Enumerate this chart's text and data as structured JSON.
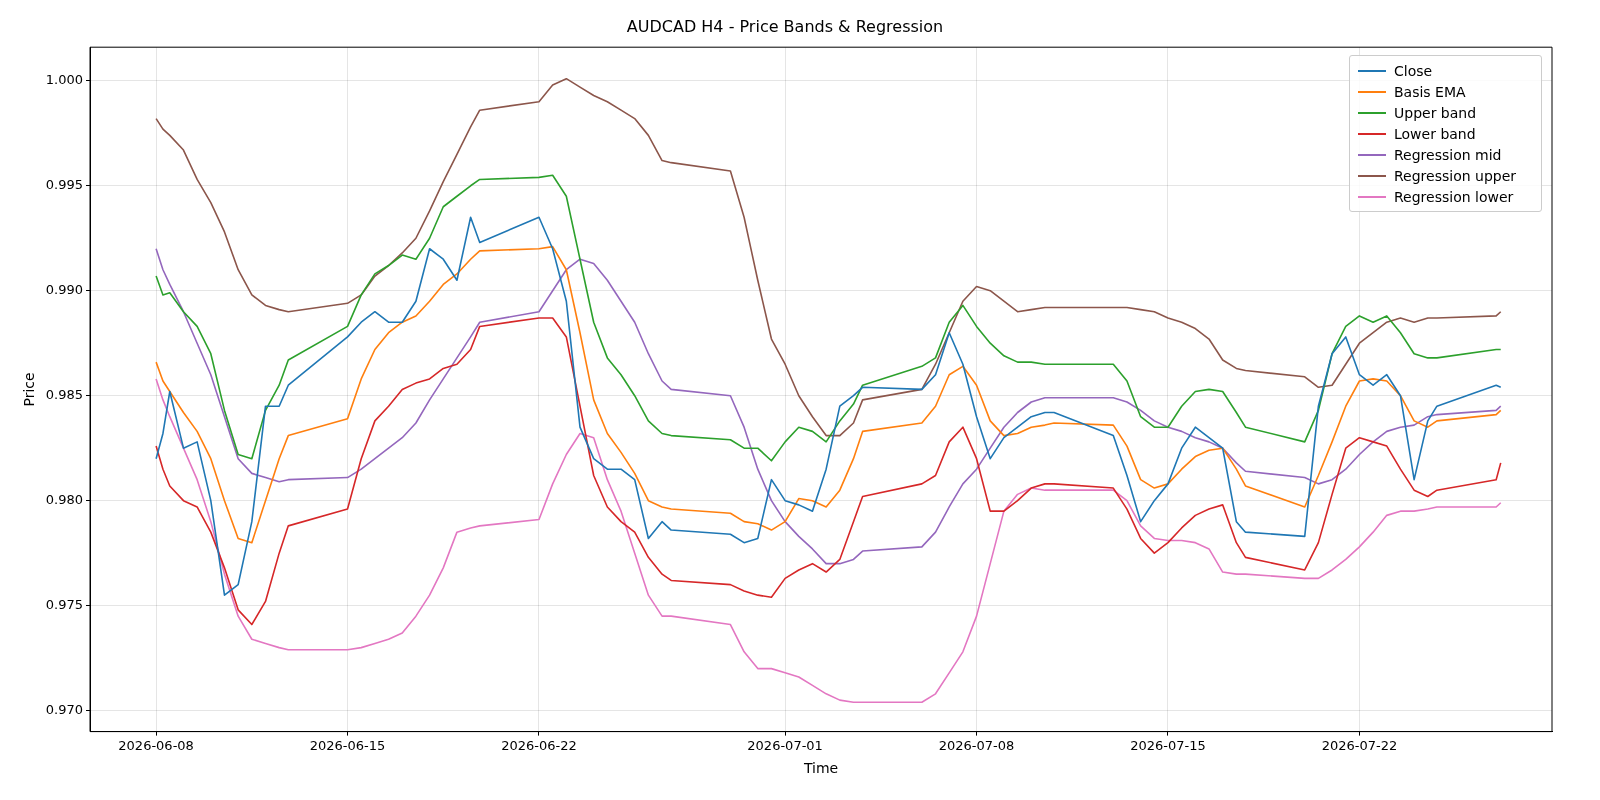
{
  "chart_data": {
    "type": "line",
    "title": "AUDCAD H4 - Price Bands & Regression",
    "xlabel": "Time",
    "ylabel": "Price",
    "x": [
      "2026-06-08T00:00",
      "2026-06-08T06:00",
      "2026-06-08T12:00",
      "2026-06-09T00:00",
      "2026-06-09T12:00",
      "2026-06-10T00:00",
      "2026-06-10T12:00",
      "2026-06-11T00:00",
      "2026-06-11T12:00",
      "2026-06-12T00:00",
      "2026-06-12T12:00",
      "2026-06-12T20:00",
      "2026-06-15T00:00",
      "2026-06-15T12:00",
      "2026-06-16T00:00",
      "2026-06-16T12:00",
      "2026-06-17T00:00",
      "2026-06-17T12:00",
      "2026-06-18T00:00",
      "2026-06-18T12:00",
      "2026-06-19T00:00",
      "2026-06-19T12:00",
      "2026-06-19T20:00",
      "2026-06-22T00:00",
      "2026-06-22T12:00",
      "2026-06-23T00:00",
      "2026-06-23T12:00",
      "2026-06-24T00:00",
      "2026-06-24T12:00",
      "2026-06-25T00:00",
      "2026-06-25T12:00",
      "2026-06-26T00:00",
      "2026-06-26T12:00",
      "2026-06-26T20:00",
      "2026-06-29T00:00",
      "2026-06-29T12:00",
      "2026-06-30T00:00",
      "2026-06-30T12:00",
      "2026-07-01T00:00",
      "2026-07-01T12:00",
      "2026-07-02T00:00",
      "2026-07-02T12:00",
      "2026-07-03T00:00",
      "2026-07-03T12:00",
      "2026-07-03T20:00",
      "2026-07-06T00:00",
      "2026-07-06T12:00",
      "2026-07-07T00:00",
      "2026-07-07T12:00",
      "2026-07-08T00:00",
      "2026-07-08T12:00",
      "2026-07-09T00:00",
      "2026-07-09T12:00",
      "2026-07-10T00:00",
      "2026-07-10T12:00",
      "2026-07-10T20:00",
      "2026-07-13T00:00",
      "2026-07-13T12:00",
      "2026-07-14T00:00",
      "2026-07-14T12:00",
      "2026-07-15T00:00",
      "2026-07-15T12:00",
      "2026-07-16T00:00",
      "2026-07-16T12:00",
      "2026-07-17T00:00",
      "2026-07-17T12:00",
      "2026-07-17T20:00",
      "2026-07-20T00:00",
      "2026-07-20T12:00",
      "2026-07-21T00:00",
      "2026-07-21T12:00",
      "2026-07-22T00:00",
      "2026-07-22T12:00",
      "2026-07-23T00:00",
      "2026-07-23T12:00",
      "2026-07-24T00:00",
      "2026-07-24T12:00",
      "2026-07-24T20:00",
      "2026-07-27T00:00",
      "2026-07-27T04:00"
    ],
    "xlim": [
      "2026-06-05T14:00",
      "2026-07-29T01:00"
    ],
    "xticks": [
      "2026-06-08",
      "2026-06-15",
      "2026-06-22",
      "2026-07-01",
      "2026-07-08",
      "2026-07-15",
      "2026-07-22"
    ],
    "ylim": [
      0.969,
      1.0016
    ],
    "yticks": [
      {
        "value": 0.97,
        "label": "0.970"
      },
      {
        "value": 0.975,
        "label": "0.975"
      },
      {
        "value": 0.98,
        "label": "0.980"
      },
      {
        "value": 0.985,
        "label": "0.985"
      },
      {
        "value": 0.99,
        "label": "0.990"
      },
      {
        "value": 0.995,
        "label": "0.995"
      },
      {
        "value": 1.0,
        "label": "1.000"
      }
    ],
    "grid": true,
    "legend": "top right",
    "marker": "none",
    "line_style": "solid",
    "series": [
      {
        "name": "Close",
        "color": "#1f77b4",
        "values": [
          0.982,
          0.9832,
          0.9852,
          0.9825,
          0.9828,
          0.98,
          0.9755,
          0.976,
          0.979,
          0.9845,
          0.9845,
          0.9855,
          0.9878,
          0.9885,
          0.989,
          0.9885,
          0.9885,
          0.9895,
          0.992,
          0.9915,
          0.9905,
          0.9935,
          0.9923,
          0.9935,
          0.992,
          0.9895,
          0.9835,
          0.982,
          0.9815,
          0.9815,
          0.981,
          0.9782,
          0.979,
          0.9786,
          0.9784,
          0.978,
          0.9782,
          0.981,
          0.98,
          0.9798,
          0.9795,
          0.9815,
          0.9845,
          0.985,
          0.9854,
          0.9853,
          0.986,
          0.988,
          0.9865,
          0.984,
          0.982,
          0.983,
          0.9835,
          0.984,
          0.9842,
          0.9842,
          0.9831,
          0.9812,
          0.979,
          0.98,
          0.9808,
          0.9825,
          0.9835,
          0.983,
          0.9825,
          0.979,
          0.9785,
          0.9783,
          0.9845,
          0.987,
          0.9878,
          0.986,
          0.9855,
          0.986,
          0.985,
          0.981,
          0.9838,
          0.9845,
          0.9855,
          0.9854
        ]
      },
      {
        "name": "Basis EMA",
        "color": "#ff7f0e",
        "values": [
          0.9866,
          0.9857,
          0.9852,
          0.9842,
          0.9833,
          0.982,
          0.98,
          0.9782,
          0.978,
          0.98,
          0.982,
          0.9831,
          0.9839,
          0.9858,
          0.9872,
          0.988,
          0.9885,
          0.9888,
          0.9895,
          0.9903,
          0.9908,
          0.9915,
          0.9919,
          0.992,
          0.9921,
          0.991,
          0.988,
          0.9848,
          0.9832,
          0.9823,
          0.9813,
          0.98,
          0.9797,
          0.9796,
          0.9794,
          0.979,
          0.9789,
          0.9786,
          0.979,
          0.9801,
          0.98,
          0.9797,
          0.9805,
          0.982,
          0.9833,
          0.9837,
          0.9845,
          0.986,
          0.9864,
          0.9855,
          0.9838,
          0.9831,
          0.9832,
          0.9835,
          0.9836,
          0.9837,
          0.9836,
          0.9826,
          0.981,
          0.9806,
          0.9808,
          0.9815,
          0.9821,
          0.9824,
          0.9825,
          0.9815,
          0.9807,
          0.9797,
          0.9812,
          0.9828,
          0.9845,
          0.9857,
          0.9858,
          0.9857,
          0.985,
          0.9838,
          0.9835,
          0.9838,
          0.9841,
          0.9843
        ]
      },
      {
        "name": "Upper band",
        "color": "#2ca02c",
        "values": [
          0.9907,
          0.9898,
          0.9899,
          0.989,
          0.9883,
          0.987,
          0.9843,
          0.9822,
          0.982,
          0.9843,
          0.9855,
          0.9867,
          0.9883,
          0.9898,
          0.9908,
          0.9912,
          0.9917,
          0.9915,
          0.9925,
          0.994,
          0.9945,
          0.995,
          0.9953,
          0.9954,
          0.9955,
          0.9945,
          0.9915,
          0.9885,
          0.9868,
          0.986,
          0.985,
          0.9838,
          0.9832,
          0.9831,
          0.9829,
          0.9825,
          0.9825,
          0.9819,
          0.9828,
          0.9835,
          0.9833,
          0.9828,
          0.9838,
          0.9846,
          0.9855,
          0.9864,
          0.9868,
          0.9885,
          0.9893,
          0.9883,
          0.9875,
          0.9869,
          0.9866,
          0.9866,
          0.9865,
          0.9865,
          0.9865,
          0.9857,
          0.984,
          0.9835,
          0.9835,
          0.9845,
          0.9852,
          0.9853,
          0.9852,
          0.9842,
          0.9835,
          0.9828,
          0.9843,
          0.987,
          0.9883,
          0.9888,
          0.9885,
          0.9888,
          0.988,
          0.987,
          0.9868,
          0.9868,
          0.9872,
          0.9872
        ]
      },
      {
        "name": "Lower band",
        "color": "#d62728",
        "values": [
          0.9826,
          0.9815,
          0.9807,
          0.98,
          0.9797,
          0.9785,
          0.9768,
          0.9748,
          0.9741,
          0.9752,
          0.9775,
          0.9788,
          0.9796,
          0.982,
          0.9838,
          0.9845,
          0.9853,
          0.9856,
          0.9858,
          0.9863,
          0.9865,
          0.9872,
          0.9883,
          0.9887,
          0.9887,
          0.9878,
          0.9845,
          0.9812,
          0.9797,
          0.979,
          0.9785,
          0.9773,
          0.9765,
          0.9762,
          0.976,
          0.9757,
          0.9755,
          0.9754,
          0.9763,
          0.9767,
          0.977,
          0.9766,
          0.9772,
          0.979,
          0.9802,
          0.9808,
          0.9812,
          0.9828,
          0.9835,
          0.982,
          0.9795,
          0.9795,
          0.98,
          0.9806,
          0.9808,
          0.9808,
          0.9806,
          0.9796,
          0.9782,
          0.9775,
          0.978,
          0.9787,
          0.9793,
          0.9796,
          0.9798,
          0.978,
          0.9773,
          0.9767,
          0.978,
          0.9803,
          0.9825,
          0.983,
          0.9828,
          0.9826,
          0.9815,
          0.9805,
          0.9802,
          0.9805,
          0.981,
          0.9818
        ]
      },
      {
        "name": "Regression mid",
        "color": "#9467bd",
        "values": [
          0.992,
          0.991,
          0.9903,
          0.989,
          0.9875,
          0.986,
          0.984,
          0.982,
          0.9813,
          0.9811,
          0.9809,
          0.981,
          0.9811,
          0.9815,
          0.982,
          0.9825,
          0.983,
          0.9837,
          0.9848,
          0.9858,
          0.9868,
          0.9878,
          0.9885,
          0.989,
          0.99,
          0.991,
          0.9915,
          0.9913,
          0.9905,
          0.9895,
          0.9885,
          0.987,
          0.9857,
          0.9853,
          0.985,
          0.9835,
          0.9815,
          0.98,
          0.979,
          0.9783,
          0.9777,
          0.977,
          0.977,
          0.9772,
          0.9776,
          0.9778,
          0.9785,
          0.9797,
          0.9808,
          0.9815,
          0.9825,
          0.9835,
          0.9842,
          0.9847,
          0.9849,
          0.9849,
          0.9849,
          0.9847,
          0.9843,
          0.9838,
          0.9835,
          0.9833,
          0.983,
          0.9828,
          0.9825,
          0.9818,
          0.9814,
          0.9811,
          0.9808,
          0.981,
          0.9815,
          0.9822,
          0.9828,
          0.9833,
          0.9835,
          0.9836,
          0.984,
          0.9841,
          0.9843,
          0.9845
        ]
      },
      {
        "name": "Regression upper",
        "color": "#8c564b",
        "values": [
          0.9982,
          0.9977,
          0.9974,
          0.9967,
          0.9953,
          0.9942,
          0.9928,
          0.991,
          0.9898,
          0.9893,
          0.9891,
          0.989,
          0.9894,
          0.9898,
          0.9907,
          0.9912,
          0.9918,
          0.9925,
          0.9938,
          0.9952,
          0.9965,
          0.9978,
          0.9986,
          0.999,
          0.9998,
          1.0001,
          0.9997,
          0.9993,
          0.999,
          0.9986,
          0.9982,
          0.9974,
          0.9962,
          0.9961,
          0.9957,
          0.9935,
          0.9905,
          0.9877,
          0.9865,
          0.985,
          0.984,
          0.9831,
          0.9831,
          0.9837,
          0.9848,
          0.9853,
          0.9865,
          0.988,
          0.9895,
          0.9902,
          0.99,
          0.9895,
          0.989,
          0.9891,
          0.9892,
          0.9892,
          0.9892,
          0.9892,
          0.9891,
          0.989,
          0.9887,
          0.9885,
          0.9882,
          0.9877,
          0.9867,
          0.9863,
          0.9862,
          0.9859,
          0.9854,
          0.9855,
          0.9865,
          0.9875,
          0.988,
          0.9885,
          0.9887,
          0.9885,
          0.9887,
          0.9887,
          0.9888,
          0.989
        ]
      },
      {
        "name": "Regression lower",
        "color": "#e377c2",
        "values": [
          0.9858,
          0.9848,
          0.984,
          0.9825,
          0.981,
          0.979,
          0.9765,
          0.9745,
          0.9734,
          0.9732,
          0.973,
          0.9729,
          0.9729,
          0.973,
          0.9732,
          0.9734,
          0.9737,
          0.9745,
          0.9755,
          0.9768,
          0.9785,
          0.9787,
          0.9788,
          0.9791,
          0.9808,
          0.9822,
          0.9832,
          0.983,
          0.981,
          0.9795,
          0.9775,
          0.9755,
          0.9745,
          0.9745,
          0.9741,
          0.9728,
          0.972,
          0.972,
          0.9718,
          0.9716,
          0.9712,
          0.9708,
          0.9705,
          0.9704,
          0.9704,
          0.9704,
          0.9708,
          0.9718,
          0.9728,
          0.9745,
          0.977,
          0.9795,
          0.9803,
          0.9806,
          0.9805,
          0.9805,
          0.9805,
          0.98,
          0.9788,
          0.9782,
          0.9781,
          0.9781,
          0.978,
          0.9777,
          0.9766,
          0.9765,
          0.9765,
          0.9763,
          0.9763,
          0.9767,
          0.9772,
          0.9778,
          0.9785,
          0.9793,
          0.9795,
          0.9795,
          0.9796,
          0.9797,
          0.9797,
          0.9799
        ]
      }
    ]
  }
}
